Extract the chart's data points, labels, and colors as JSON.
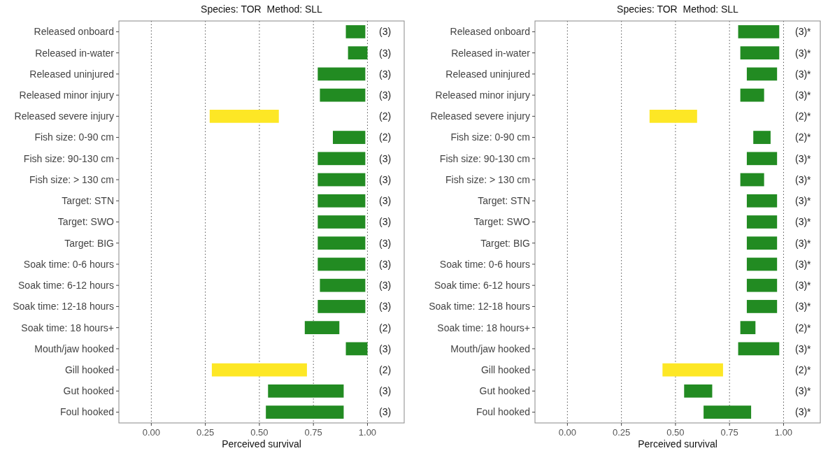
{
  "chart_data": [
    {
      "type": "bar",
      "orientation": "horizontal",
      "title": "Species: TOR  Method: SLL",
      "xlabel": "Perceived survival",
      "categories": [
        "Released onboard",
        "Released in-water",
        "Released uninjured",
        "Released minor injury",
        "Released severe injury",
        "Fish size: 0-90 cm",
        "Fish size: 90-130 cm",
        "Fish size: > 130 cm",
        "Target: STN",
        "Target: SWO",
        "Target: BIG",
        "Soak time: 0-6 hours",
        "Soak time: 6-12 hours",
        "Soak time: 12-18 hours",
        "Soak time: 18 hours+",
        "Mouth/jaw hooked",
        "Gill hooked",
        "Gut hooked",
        "Foul hooked"
      ],
      "base": [
        0.9,
        0.91,
        0.77,
        0.78,
        0.27,
        0.84,
        0.77,
        0.77,
        0.77,
        0.77,
        0.77,
        0.77,
        0.78,
        0.77,
        0.71,
        0.9,
        0.28,
        0.54,
        0.53
      ],
      "values": [
        0.09,
        0.09,
        0.22,
        0.21,
        0.32,
        0.15,
        0.22,
        0.22,
        0.22,
        0.22,
        0.22,
        0.22,
        0.21,
        0.22,
        0.16,
        0.1,
        0.44,
        0.35,
        0.36
      ],
      "colors": [
        "#228b22",
        "#228b22",
        "#228b22",
        "#228b22",
        "#fde725",
        "#228b22",
        "#228b22",
        "#228b22",
        "#228b22",
        "#228b22",
        "#228b22",
        "#228b22",
        "#228b22",
        "#228b22",
        "#228b22",
        "#228b22",
        "#fde725",
        "#228b22",
        "#228b22"
      ],
      "annotations": [
        "(3)",
        "(3)",
        "(3)",
        "(3)",
        "(2)",
        "(2)",
        "(3)",
        "(3)",
        "(3)",
        "(3)",
        "(3)",
        "(3)",
        "(3)",
        "(3)",
        "(2)",
        "(3)",
        "(2)",
        "(3)",
        "(3)"
      ],
      "xlim": [
        -0.15,
        1.17
      ],
      "xticks": [
        {
          "value": 0,
          "label": "0.00"
        },
        {
          "value": 0.25,
          "label": "0.25"
        },
        {
          "value": 0.5,
          "label": "0.50"
        },
        {
          "value": 0.75,
          "label": "0.75"
        },
        {
          "value": 1,
          "label": "1.00"
        }
      ],
      "grid": "x"
    },
    {
      "type": "bar",
      "orientation": "horizontal",
      "title": "Species: TOR  Method: SLL",
      "xlabel": "Perceived survival",
      "categories": [
        "Released onboard",
        "Released in-water",
        "Released uninjured",
        "Released minor injury",
        "Released severe injury",
        "Fish size: 0-90 cm",
        "Fish size: 90-130 cm",
        "Fish size: > 130 cm",
        "Target: STN",
        "Target: SWO",
        "Target: BIG",
        "Soak time: 0-6 hours",
        "Soak time: 6-12 hours",
        "Soak time: 12-18 hours",
        "Soak time: 18 hours+",
        "Mouth/jaw hooked",
        "Gill hooked",
        "Gut hooked",
        "Foul hooked"
      ],
      "base": [
        0.79,
        0.8,
        0.83,
        0.8,
        0.38,
        0.86,
        0.83,
        0.8,
        0.83,
        0.83,
        0.83,
        0.83,
        0.83,
        0.83,
        0.8,
        0.79,
        0.44,
        0.54,
        0.63
      ],
      "values": [
        0.19,
        0.18,
        0.14,
        0.11,
        0.22,
        0.08,
        0.14,
        0.11,
        0.14,
        0.14,
        0.14,
        0.14,
        0.14,
        0.14,
        0.07,
        0.19,
        0.28,
        0.13,
        0.22
      ],
      "colors": [
        "#228b22",
        "#228b22",
        "#228b22",
        "#228b22",
        "#fde725",
        "#228b22",
        "#228b22",
        "#228b22",
        "#228b22",
        "#228b22",
        "#228b22",
        "#228b22",
        "#228b22",
        "#228b22",
        "#228b22",
        "#228b22",
        "#fde725",
        "#228b22",
        "#228b22"
      ],
      "annotations": [
        "(3)*",
        "(3)*",
        "(3)*",
        "(3)*",
        "(2)*",
        "(2)*",
        "(3)*",
        "(3)*",
        "(3)*",
        "(3)*",
        "(3)*",
        "(3)*",
        "(3)*",
        "(3)*",
        "(2)*",
        "(3)*",
        "(2)*",
        "(3)*",
        "(3)*"
      ],
      "xlim": [
        -0.15,
        1.17
      ],
      "xticks": [
        {
          "value": 0,
          "label": "0.00"
        },
        {
          "value": 0.25,
          "label": "0.25"
        },
        {
          "value": 0.5,
          "label": "0.50"
        },
        {
          "value": 0.75,
          "label": "0.75"
        },
        {
          "value": 1,
          "label": "1.00"
        }
      ],
      "grid": "x"
    }
  ]
}
